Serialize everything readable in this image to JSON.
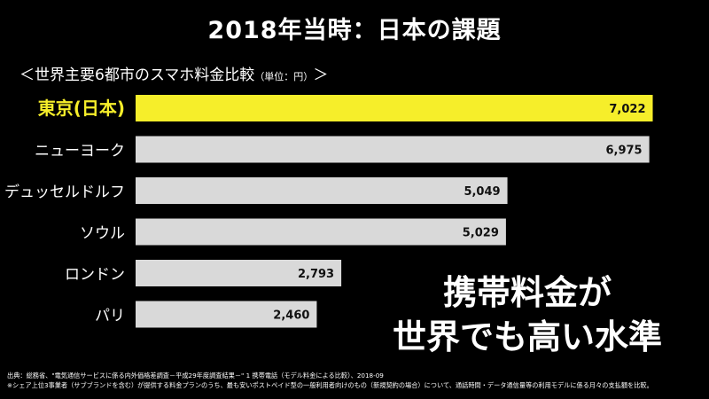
{
  "header": {
    "title": "2018年当時：日本の課題",
    "subtitle": "＜世界主要6都市のスマホ料金比較",
    "unit": "（単位：円）",
    "subtitle_close": "＞"
  },
  "message": {
    "line1": "携帯料金が",
    "line2": "世界でも高い水準"
  },
  "source": {
    "line1": "出典：総務省、\"電気通信サービスに係る内外価格差調査－平成29年度調査結果－\" 1 携帯電話（モデル料金による比較）、2018-09",
    "line2": "※シェア上位3事業者（サブブランドを含む）が提供する料金プランのうち、最も安いポストペイド型の一般利用者向けのもの（新規契約の場合）について、通話時間・データ通信量等の利用モデルに係る月々の支払額を比較。"
  },
  "colors": {
    "highlight_bar": "#f6ee2a",
    "highlight_label": "#f6ee2a",
    "default_bar": "#d9d9d9",
    "background": "#000000"
  },
  "chart_data": {
    "type": "bar",
    "orientation": "horizontal",
    "categories": [
      "東京(日本)",
      "ニューヨーク",
      "デュッセルドルフ",
      "ソウル",
      "ロンドン",
      "パリ"
    ],
    "values": [
      7022,
      6975,
      5049,
      5029,
      2793,
      2460
    ],
    "value_labels": [
      "7,022",
      "6,975",
      "5,049",
      "5,029",
      "2,793",
      "2,460"
    ],
    "highlight_index": 0,
    "xlim": [
      0,
      7100
    ],
    "grid": false,
    "legend": "none"
  }
}
